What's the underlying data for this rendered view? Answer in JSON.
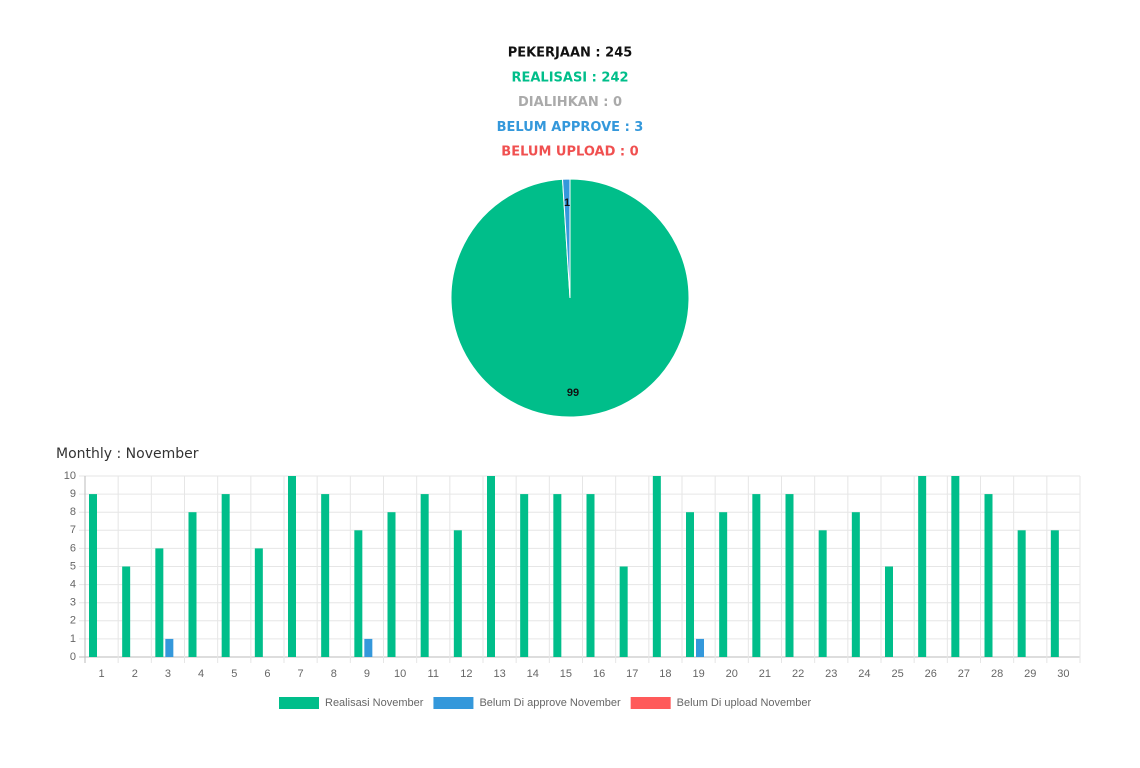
{
  "summary": {
    "lines": [
      {
        "text": "PEKERJAAN : 245",
        "color": "#111111"
      },
      {
        "text": "REALISASI : 242",
        "color": "#00be8a"
      },
      {
        "text": "DIALIHKAN : 0",
        "color": "#aaaaaa"
      },
      {
        "text": "BELUM APPROVE : 3",
        "color": "#3498db"
      },
      {
        "text": "BELUM UPLOAD : 0",
        "color": "#f05050"
      }
    ]
  },
  "chart_data": [
    {
      "type": "pie",
      "values": [
        99,
        1
      ],
      "colors": [
        "#00be8a",
        "#3498db"
      ]
    },
    {
      "type": "bar",
      "title": "Monthly : November",
      "categories": [
        "1",
        "2",
        "3",
        "4",
        "5",
        "6",
        "7",
        "8",
        "9",
        "10",
        "11",
        "12",
        "13",
        "14",
        "15",
        "16",
        "17",
        "18",
        "19",
        "20",
        "21",
        "22",
        "23",
        "24",
        "25",
        "26",
        "27",
        "28",
        "29",
        "30"
      ],
      "series": [
        {
          "name": "Realisasi November",
          "color": "#00be8a",
          "values": [
            9,
            5,
            6,
            8,
            9,
            6,
            10,
            9,
            7,
            8,
            9,
            7,
            10,
            9,
            9,
            9,
            5,
            10,
            8,
            8,
            9,
            9,
            7,
            8,
            5,
            10,
            10,
            9,
            7,
            7
          ]
        },
        {
          "name": "Belum Di approve November",
          "color": "#3498db",
          "values": [
            0,
            0,
            1,
            0,
            0,
            0,
            0,
            0,
            1,
            0,
            0,
            0,
            0,
            0,
            0,
            0,
            0,
            0,
            1,
            0,
            0,
            0,
            0,
            0,
            0,
            0,
            0,
            0,
            0,
            0
          ]
        },
        {
          "name": "Belum Di upload November",
          "color": "#ff5a5a",
          "values": [
            0,
            0,
            0,
            0,
            0,
            0,
            0,
            0,
            0,
            0,
            0,
            0,
            0,
            0,
            0,
            0,
            0,
            0,
            0,
            0,
            0,
            0,
            0,
            0,
            0,
            0,
            0,
            0,
            0,
            0
          ]
        }
      ],
      "ylim": [
        0,
        10
      ],
      "yticks": [
        0,
        1,
        2,
        3,
        4,
        5,
        6,
        7,
        8,
        9,
        10
      ],
      "grid": true
    }
  ]
}
